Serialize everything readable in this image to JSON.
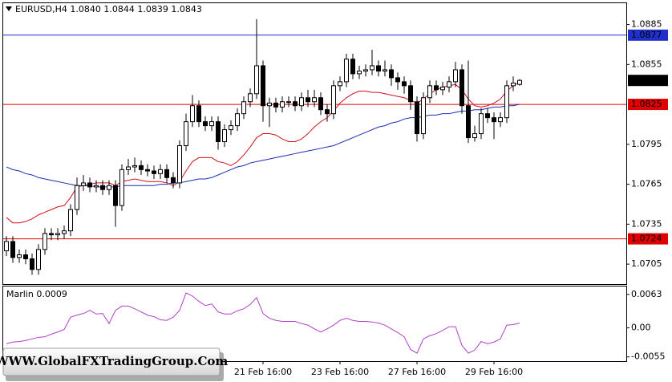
{
  "chart_data": {
    "type": "candlestick",
    "title": "EURUSD,H4  1.0840 1.0844 1.0839 1.0843",
    "categories": [
      null,
      null,
      null,
      null,
      null,
      null,
      null,
      null,
      null,
      null,
      null,
      null,
      null,
      null,
      null,
      null,
      null,
      null,
      null,
      null,
      null,
      null,
      null,
      null,
      null,
      null,
      null,
      null,
      null,
      null,
      null,
      null,
      null,
      null,
      null,
      null,
      null,
      null,
      null,
      null,
      "21 Feb 16:00",
      null,
      null,
      null,
      null,
      null,
      null,
      null,
      null,
      null,
      null,
      null,
      "23 Feb 16:00",
      null,
      null,
      null,
      null,
      null,
      null,
      null,
      null,
      null,
      null,
      null,
      "27 Feb 16:00",
      null,
      null,
      null,
      null,
      null,
      null,
      null,
      null,
      null,
      null,
      null,
      "29 Feb 16:00",
      null,
      null,
      null,
      null
    ],
    "open": [
      1.0715,
      1.0722,
      1.071,
      1.0712,
      1.0709,
      1.0701,
      1.0716,
      1.0728,
      1.0727,
      1.0728,
      1.073,
      1.0746,
      1.0764,
      1.0766,
      1.0763,
      1.0764,
      1.0761,
      1.0764,
      1.0749,
      1.0776,
      1.0778,
      1.0779,
      1.0776,
      1.0775,
      1.0773,
      1.0776,
      1.077,
      1.0766,
      1.0794,
      1.0812,
      1.0824,
      1.0812,
      1.0809,
      1.0812,
      1.0797,
      1.0806,
      1.0809,
      1.0818,
      1.0827,
      1.0833,
      1.0854,
      1.0824,
      1.0826,
      1.0823,
      1.0827,
      1.0827,
      1.0824,
      1.083,
      1.0827,
      1.083,
      1.0821,
      1.0818,
      1.0839,
      1.0842,
      1.0859,
      1.0848,
      1.085,
      1.0851,
      1.0854,
      1.085,
      1.0851,
      1.0845,
      1.0842,
      1.0839,
      1.0827,
      1.0803,
      1.083,
      1.0839,
      1.0836,
      1.0838,
      1.0842,
      1.0851,
      1.0824,
      1.08,
      1.0803,
      1.0818,
      1.0815,
      1.0812,
      1.0815,
      1.0839,
      1.084
    ],
    "high": [
      1.0726,
      1.0726,
      1.0716,
      1.0716,
      1.0713,
      1.072,
      1.0732,
      1.0732,
      1.0732,
      1.0734,
      1.075,
      1.077,
      1.0772,
      1.077,
      1.0768,
      1.0768,
      1.0768,
      1.0768,
      1.078,
      1.0784,
      1.0785,
      1.0783,
      1.078,
      1.0779,
      1.078,
      1.078,
      1.0774,
      1.0798,
      1.0818,
      1.0832,
      1.0828,
      1.0816,
      1.0816,
      1.0816,
      1.081,
      1.0813,
      1.0822,
      1.0831,
      1.0837,
      1.0889,
      1.0858,
      1.083,
      1.083,
      1.0831,
      1.0831,
      1.0831,
      1.0834,
      1.0836,
      1.0836,
      1.0834,
      1.0825,
      1.0843,
      1.0846,
      1.0863,
      1.0863,
      1.0854,
      1.0855,
      1.0866,
      1.0858,
      1.0858,
      1.0855,
      1.0849,
      1.0846,
      1.0843,
      1.0831,
      1.0834,
      1.0843,
      1.0843,
      1.0842,
      1.0846,
      1.0857,
      1.0855,
      1.0858,
      1.0809,
      1.0822,
      1.0822,
      1.0819,
      1.0819,
      1.0843,
      1.0846,
      1.0844
    ],
    "low": [
      1.0711,
      1.0706,
      1.0706,
      1.0705,
      1.0697,
      1.0697,
      1.0712,
      1.0723,
      1.0723,
      1.0724,
      1.0726,
      1.0742,
      1.076,
      1.0759,
      1.0759,
      1.0757,
      1.0757,
      1.0733,
      1.0745,
      1.0772,
      1.0774,
      1.0772,
      1.0771,
      1.0769,
      1.0769,
      1.0766,
      1.0762,
      1.0762,
      1.079,
      1.0808,
      1.0808,
      1.0805,
      1.0805,
      1.0791,
      1.0793,
      1.0802,
      1.0805,
      1.0814,
      1.0823,
      1.0829,
      1.0812,
      1.0808,
      1.0819,
      1.0819,
      1.0823,
      1.082,
      1.082,
      1.0823,
      1.0823,
      1.0817,
      1.0812,
      1.0814,
      1.0835,
      1.0838,
      1.0844,
      1.0844,
      1.0846,
      1.0847,
      1.0846,
      1.0846,
      1.0839,
      1.0836,
      1.0833,
      1.0821,
      1.0797,
      1.0799,
      1.0826,
      1.0832,
      1.0832,
      1.0834,
      1.0838,
      1.0818,
      1.0796,
      1.0797,
      1.0799,
      1.0811,
      1.0799,
      1.0808,
      1.0811,
      1.0835,
      1.0839
    ],
    "close": [
      1.0722,
      1.071,
      1.0712,
      1.0709,
      1.0701,
      1.0716,
      1.0728,
      1.0727,
      1.0728,
      1.073,
      1.0746,
      1.0764,
      1.0766,
      1.0763,
      1.0764,
      1.0761,
      1.0764,
      1.0749,
      1.0776,
      1.0778,
      1.0779,
      1.0776,
      1.0775,
      1.0773,
      1.0776,
      1.077,
      1.0766,
      1.0794,
      1.0812,
      1.0824,
      1.0812,
      1.0809,
      1.0812,
      1.0797,
      1.0806,
      1.0809,
      1.0818,
      1.0827,
      1.0833,
      1.0854,
      1.0824,
      1.0826,
      1.0823,
      1.0827,
      1.0827,
      1.0824,
      1.083,
      1.0827,
      1.083,
      1.0821,
      1.0818,
      1.0839,
      1.0842,
      1.0859,
      1.0848,
      1.085,
      1.0851,
      1.0854,
      1.085,
      1.0851,
      1.0845,
      1.0842,
      1.0839,
      1.0827,
      1.0803,
      1.083,
      1.0839,
      1.0836,
      1.0838,
      1.0842,
      1.0851,
      1.0824,
      1.08,
      1.0803,
      1.0818,
      1.0815,
      1.0812,
      1.0815,
      1.0839,
      1.0841,
      1.0843
    ],
    "bull_color": "#ffffff",
    "bear_color": "#000000",
    "series": [
      {
        "color": "#d0101c",
        "values": [
          1.074,
          1.0736,
          1.0736,
          1.0737,
          1.0739,
          1.0742,
          1.0744,
          1.0746,
          1.0748,
          1.0749,
          1.0755,
          1.0763,
          1.0764,
          1.0765,
          1.0766,
          1.0766,
          1.0766,
          1.0764,
          1.0767,
          1.0768,
          1.0769,
          1.0768,
          1.0767,
          1.0767,
          1.0767,
          1.0766,
          1.0764,
          1.0767,
          1.0775,
          1.0782,
          1.0785,
          1.0785,
          1.0785,
          1.0782,
          1.0781,
          1.0779,
          1.0782,
          1.0787,
          1.0793,
          1.08,
          1.0803,
          1.0803,
          1.0802,
          1.0799,
          1.0797,
          1.0797,
          1.0799,
          1.0803,
          1.0808,
          1.0812,
          1.0815,
          1.082,
          1.0826,
          1.083,
          1.0833,
          1.0835,
          1.0835,
          1.0834,
          1.0834,
          1.0833,
          1.0832,
          1.0831,
          1.083,
          1.0828,
          1.0826,
          1.0829,
          1.0833,
          1.0836,
          1.0838,
          1.0839,
          1.084,
          1.0836,
          1.0829,
          1.0824,
          1.0823,
          1.0824,
          1.0826,
          1.0829,
          1.0835,
          1.0839,
          1.0842
        ]
      },
      {
        "color": "#1c2cb4",
        "values": [
          1.0778,
          1.0776,
          1.0775,
          1.0773,
          1.0772,
          1.077,
          1.0769,
          1.0768,
          1.0767,
          1.0766,
          1.0765,
          1.0764,
          1.0764,
          1.0764,
          1.0763,
          1.0763,
          1.0763,
          1.0763,
          1.0764,
          1.0764,
          1.0764,
          1.0764,
          1.0764,
          1.0764,
          1.0765,
          1.0765,
          1.0766,
          1.0766,
          1.0767,
          1.0768,
          1.0769,
          1.0769,
          1.077,
          1.0772,
          1.0774,
          1.0776,
          1.0778,
          1.0779,
          1.0781,
          1.0782,
          1.0783,
          1.0784,
          1.0785,
          1.0786,
          1.0787,
          1.0788,
          1.0789,
          1.079,
          1.0791,
          1.0792,
          1.0793,
          1.0794,
          1.0796,
          1.0798,
          1.08,
          1.0802,
          1.0804,
          1.0806,
          1.0808,
          1.0809,
          1.0811,
          1.0812,
          1.0814,
          1.0815,
          1.0815,
          1.0816,
          1.0817,
          1.0817,
          1.0818,
          1.0818,
          1.0819,
          1.082,
          1.082,
          1.0821,
          1.0821,
          1.0822,
          1.0823,
          1.0823,
          1.0824,
          1.0824,
          1.0825
        ]
      }
    ],
    "levels": [
      {
        "value": 1.0877,
        "color": "#2030c8"
      },
      {
        "value": 1.0825,
        "color": "#e00000"
      },
      {
        "value": 1.0724,
        "color": "#e00000"
      }
    ],
    "ylim": [
      1.069,
      1.0901
    ],
    "yticks": [
      1.0885,
      1.0855,
      1.0795,
      1.0765,
      1.0735,
      1.0705
    ],
    "indicator": {
      "type": "line",
      "name": "Marlin",
      "color": "#b040c8",
      "values": [
        -0.003,
        -0.0027,
        -0.0026,
        -0.0024,
        -0.0021,
        -0.0018,
        -0.0017,
        -0.0012,
        -0.0008,
        -0.0003,
        0.002,
        0.0024,
        0.0027,
        0.0033,
        0.0026,
        0.0027,
        0.0008,
        0.0033,
        0.0041,
        0.0041,
        0.0036,
        0.003,
        0.0024,
        0.0021,
        0.0015,
        0.0014,
        0.002,
        0.0033,
        0.0066,
        0.006,
        0.005,
        0.0042,
        0.0045,
        0.003,
        0.0026,
        0.0026,
        0.0032,
        0.0036,
        0.0044,
        0.0057,
        0.0027,
        0.0018,
        0.0014,
        0.0012,
        0.0012,
        0.0012,
        0.0008,
        0.0005,
        -0.0002,
        -0.0008,
        -0.0002,
        0.0005,
        0.0014,
        0.0018,
        0.0014,
        0.0012,
        0.0012,
        0.0011,
        0.0009,
        0.0005,
        -0.0002,
        -0.0009,
        -0.0017,
        -0.0041,
        -0.0048,
        -0.0021,
        -0.0015,
        -0.0011,
        -0.0005,
        0.0002,
        0.0002,
        -0.0033,
        -0.0048,
        -0.0042,
        -0.0026,
        -0.003,
        -0.0027,
        -0.0021,
        0.0005,
        0.0006,
        0.0009
      ],
      "ylim": [
        -0.0063,
        0.0078
      ],
      "yticks": [
        0.0063,
        {
          "value": 0,
          "label": "0.00"
        },
        -0.0055
      ]
    },
    "watermark": "WWW.GlobalFXTradingGroup.Com"
  }
}
